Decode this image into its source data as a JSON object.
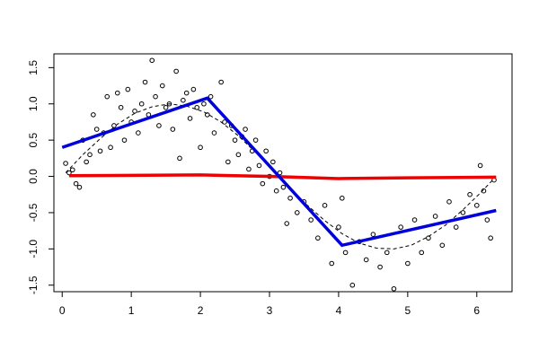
{
  "chart_data": {
    "type": "scatter",
    "xlim": [
      -0.12,
      6.51
    ],
    "ylim": [
      -1.59,
      1.69
    ],
    "xticks": [
      0,
      1,
      2,
      3,
      4,
      5,
      6
    ],
    "yticks": [
      -1.5,
      {
        "value": -1,
        "label": "-1.0"
      },
      -0.5,
      {
        "value": 0,
        "label": "0.0"
      },
      0.5,
      {
        "value": 1,
        "label": "1.0"
      },
      1.5
    ],
    "series": [
      {
        "style": "points",
        "color": "#000000",
        "x": [
          0.05,
          0.1,
          0.15,
          0.2,
          0.25,
          0.3,
          0.35,
          0.4,
          0.45,
          0.5,
          0.55,
          0.6,
          0.65,
          0.7,
          0.75,
          0.8,
          0.85,
          0.9,
          0.95,
          1.0,
          1.05,
          1.1,
          1.15,
          1.2,
          1.25,
          1.3,
          1.35,
          1.4,
          1.45,
          1.5,
          1.55,
          1.6,
          1.65,
          1.7,
          1.75,
          1.8,
          1.85,
          1.9,
          1.95,
          2.0,
          2.05,
          2.1,
          2.15,
          2.2,
          2.3,
          2.35,
          2.4,
          2.45,
          2.5,
          2.55,
          2.6,
          2.65,
          2.7,
          2.75,
          2.8,
          2.85,
          2.9,
          2.95,
          3.0,
          3.05,
          3.1,
          3.15,
          3.2,
          3.25,
          3.3,
          3.4,
          3.5,
          3.6,
          3.7,
          3.8,
          3.9,
          4.0,
          4.05,
          4.1,
          4.2,
          4.3,
          4.4,
          4.5,
          4.6,
          4.7,
          4.8,
          4.9,
          5.0,
          5.1,
          5.2,
          5.3,
          5.4,
          5.5,
          5.6,
          5.7,
          5.8,
          5.9,
          6.0,
          6.05,
          6.1,
          6.15,
          6.2,
          6.25
        ],
        "values": [
          0.18,
          0.05,
          0.09,
          -0.1,
          -0.15,
          0.5,
          0.2,
          0.3,
          0.85,
          0.65,
          0.35,
          0.6,
          1.1,
          0.4,
          0.7,
          1.15,
          0.95,
          0.5,
          1.2,
          0.75,
          0.9,
          0.6,
          1.0,
          1.3,
          0.85,
          1.6,
          1.1,
          0.7,
          1.25,
          0.95,
          1.0,
          0.65,
          1.45,
          0.25,
          1.05,
          1.15,
          0.8,
          1.2,
          0.95,
          0.4,
          1.0,
          0.85,
          1.1,
          0.6,
          1.3,
          0.75,
          0.2,
          0.7,
          0.5,
          0.3,
          0.55,
          0.65,
          0.1,
          0.35,
          0.5,
          0.15,
          -0.1,
          0.35,
          0.0,
          0.2,
          -0.2,
          0.05,
          -0.15,
          -0.65,
          -0.3,
          -0.5,
          -0.35,
          -0.6,
          -0.85,
          -0.4,
          -1.2,
          -0.7,
          -0.3,
          -1.05,
          -1.5,
          -0.9,
          -1.15,
          -0.8,
          -1.25,
          -1.05,
          -1.55,
          -0.7,
          -1.2,
          -0.6,
          -1.05,
          -0.85,
          -0.55,
          -0.95,
          -0.35,
          -0.7,
          -0.5,
          -0.25,
          -0.4,
          0.15,
          -0.2,
          -0.6,
          -0.85,
          -0.05
        ]
      },
      {
        "style": "dashed",
        "color": "#000000",
        "x": [
          0.05,
          0.3,
          0.55,
          0.8,
          1.05,
          1.3,
          1.55,
          1.8,
          2.05,
          2.3,
          2.55,
          2.8,
          3.05,
          3.3,
          3.55,
          3.8,
          4.05,
          4.3,
          4.55,
          4.8,
          5.05,
          5.3,
          5.55,
          5.8,
          6.05,
          6.25
        ],
        "values": [
          0.05,
          0.3,
          0.52,
          0.72,
          0.87,
          0.96,
          1.0,
          0.97,
          0.89,
          0.75,
          0.56,
          0.33,
          0.09,
          -0.16,
          -0.4,
          -0.61,
          -0.79,
          -0.92,
          -0.99,
          -1.0,
          -0.95,
          -0.83,
          -0.67,
          -0.46,
          -0.23,
          -0.03
        ]
      },
      {
        "style": "line",
        "color": "#ee0000",
        "x": [
          0.1,
          2.0,
          3.0,
          4.0,
          5.0,
          6.28
        ],
        "values": [
          0.01,
          0.02,
          0.0,
          -0.03,
          -0.02,
          -0.01
        ]
      },
      {
        "style": "line",
        "color": "#0000dd",
        "x": [
          0.0,
          2.1,
          4.05,
          6.28
        ],
        "values": [
          0.4,
          1.08,
          -0.95,
          -0.47
        ]
      }
    ]
  }
}
